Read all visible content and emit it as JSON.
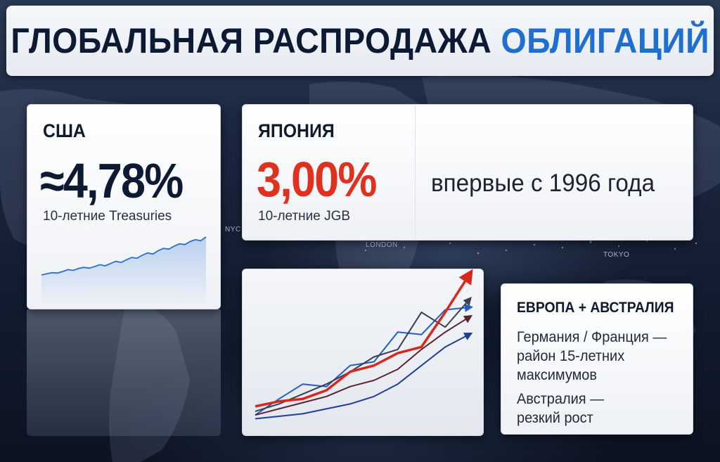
{
  "title": {
    "main": "ГЛОБАЛЬНАЯ РАСПРОДАЖА ",
    "accent": "ОБЛИГАЦИЙ"
  },
  "map_labels": [
    "NYC",
    "LONDON",
    "TOKYO"
  ],
  "usa": {
    "label": "США",
    "value": "≈4,78%",
    "subtitle": "10-летние Treasuries",
    "sparkline": [
      0.0,
      0.03,
      0.06,
      0.05,
      0.09,
      0.14,
      0.12,
      0.17,
      0.2,
      0.18,
      0.22,
      0.27,
      0.24,
      0.3,
      0.36,
      0.33,
      0.4,
      0.46,
      0.44,
      0.52,
      0.58,
      0.55,
      0.64,
      0.7,
      0.68,
      0.76,
      0.82,
      0.8,
      0.88,
      0.93,
      0.9,
      1.0
    ]
  },
  "japan": {
    "label": "ЯПОНИЯ",
    "value": "3,00%",
    "subtitle": "10-летние JGB",
    "note": "впервые с 1996 года"
  },
  "trend_chart": {
    "lines": [
      {
        "color": "#1f5fc4",
        "values": [
          0.05,
          0.18,
          0.3,
          0.28,
          0.45,
          0.48,
          0.72,
          0.7,
          0.9,
          0.92
        ]
      },
      {
        "color": "#3b3f4f",
        "values": [
          0.08,
          0.14,
          0.22,
          0.3,
          0.4,
          0.52,
          0.58,
          0.88,
          0.76,
          0.98
        ]
      },
      {
        "color": "#5a2430",
        "values": [
          0.05,
          0.1,
          0.15,
          0.2,
          0.28,
          0.33,
          0.42,
          0.58,
          0.72,
          0.84
        ]
      },
      {
        "color": "#1e3f9a",
        "values": [
          0.02,
          0.04,
          0.06,
          0.1,
          0.14,
          0.2,
          0.3,
          0.45,
          0.6,
          0.7
        ]
      },
      {
        "color": "#d8281e",
        "values": [
          0.12,
          0.16,
          0.18,
          0.25,
          0.4,
          0.45,
          0.55,
          0.6,
          0.88,
          1.18
        ]
      }
    ]
  },
  "europe": {
    "title": "ЕВРОПА + АВСТРАЛИЯ",
    "line1": "Германия / Франция —",
    "line2": "район 15-летних",
    "line3": "максимумов",
    "line4": "Австралия —",
    "line5": "резкий рост"
  },
  "colors": {
    "accent_blue": "#1f6fd1",
    "japan_red": "#e0301e",
    "dark_text": "#0d1a33"
  }
}
